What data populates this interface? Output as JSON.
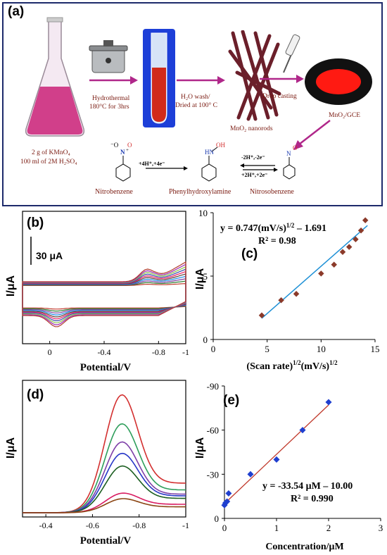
{
  "panel_a": {
    "label": "(a)",
    "step1": "Hydrothermal",
    "step1b": "180°C for 3hrs",
    "step2": "H₂O wash/",
    "step2b": "Dried at 100° C",
    "step3": "Drop casting",
    "nanorods": "MnO₂ nanorods",
    "electrode": "MnO₂/GCE",
    "reagent1": "2 g  of  KMnO₄",
    "reagent2": "100 ml of 2M H₂SO₄",
    "nitrobenzene": "Nitrobenzene",
    "phenylhydroxylamine": "Phenylhydroxylamine",
    "nitrosobenzene": "Nitrosobenzene",
    "arrow1": "+4H⁺,+4e⁻",
    "arrow2_top": "-2H⁺,-2e⁻",
    "arrow2_bot": "+2H⁺,+2e⁻"
  },
  "colors": {
    "panel_border": "#1d2a6b",
    "arrow": "#b0278a",
    "fit_line": "#1e90d6",
    "marker_c": "#8b3a2a",
    "fit_line_e": "#c0392b",
    "marker_e": "#1f3fcf"
  },
  "chart_data": [
    {
      "panel": "(b)",
      "type": "line",
      "subtype": "cyclic voltammograms",
      "xlabel": "Potential/V",
      "ylabel": "I/μA",
      "scale_bar": "30 μA",
      "x_ticks": [
        "0",
        "-0.4",
        "-0.8",
        "-1"
      ],
      "xlim": [
        0.2,
        -1.0
      ],
      "series_colors": [
        "#c0392b",
        "#2e7d32",
        "#7b3fa0",
        "#1e88e5",
        "#5d4037",
        "#e91e63",
        "#3949ab",
        "#8bc34a",
        "#9c27b0",
        "#b23b2e"
      ]
    },
    {
      "panel": "(c)",
      "type": "scatter",
      "xlabel": "(Scan rate)1/2 (mV/s)1/2",
      "xlabel_main": "(Scan rate)",
      "xlabel_sup1": "1/2",
      "xlabel_unit": "(mV/s)",
      "xlabel_sup2": "1/2",
      "ylabel": "I/μA",
      "equation": "y = 0.747(mV/s)1/2 – 1.691",
      "equation_main": "y = 0.747(mV/s)",
      "equation_sup": "1/2",
      "equation_tail": " – 1.691",
      "r2": "R² = 0.98",
      "xlim": [
        0,
        15
      ],
      "ylim": [
        0,
        10
      ],
      "x_ticks": [
        0,
        5,
        10,
        15
      ],
      "y_ticks": [
        0,
        5,
        10
      ],
      "x": [
        4.5,
        6.3,
        7.7,
        10.0,
        11.2,
        12.0,
        12.6,
        13.2,
        13.7,
        14.1
      ],
      "y": [
        1.9,
        3.1,
        3.6,
        5.2,
        5.9,
        6.9,
        7.3,
        7.9,
        8.6,
        9.4
      ],
      "fit": {
        "slope": 0.747,
        "intercept": -1.691,
        "x_range": [
          4.5,
          14.3
        ]
      }
    },
    {
      "panel": "(d)",
      "type": "line",
      "subtype": "differential pulse voltammograms",
      "xlabel": "Potential/V",
      "ylabel": "I/μA",
      "x_ticks": [
        "-0.4",
        "-0.6",
        "-0.8",
        "-1"
      ],
      "xlim": [
        -0.3,
        -1.0
      ],
      "series_colors": [
        "#d32f2f",
        "#2e9e5b",
        "#7e3fa8",
        "#2737c7",
        "#1b5e20",
        "#d81b60",
        "#8b4513"
      ]
    },
    {
      "panel": "(e)",
      "type": "scatter",
      "xlabel": "Concentration/μM",
      "ylabel": "I/μA",
      "equation": "y = -33.54 μM – 10.00",
      "r2": "R² = 0.990",
      "xlim": [
        0,
        3
      ],
      "ylim": [
        0,
        -90
      ],
      "x_ticks": [
        0,
        1,
        2,
        3
      ],
      "y_ticks": [
        "0",
        "-30",
        "-60",
        "-90"
      ],
      "x": [
        0.0,
        0.02,
        0.05,
        0.08,
        0.5,
        1.0,
        1.5,
        2.0
      ],
      "y": [
        -9.0,
        -10.5,
        -11.5,
        -17.0,
        -30.0,
        -40.0,
        -60.0,
        -79.0
      ],
      "fit": {
        "slope": -33.54,
        "intercept": -10.0,
        "x_range": [
          0,
          2.0
        ]
      }
    }
  ]
}
